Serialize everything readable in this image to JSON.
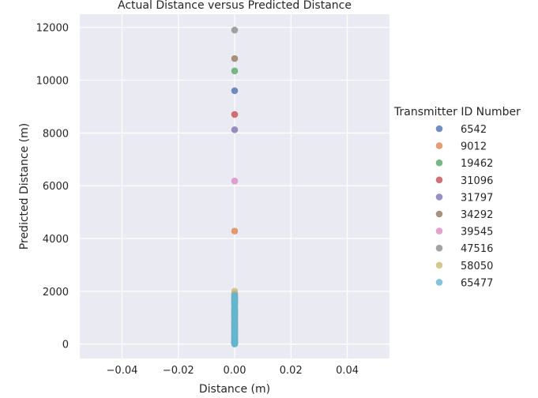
{
  "chart_data": {
    "type": "scatter",
    "title": "Actual Distance versus Predicted Distance",
    "xlabel": "Distance (m)",
    "ylabel": "Predicted Distance (m)",
    "xlim": [
      -0.055,
      0.055
    ],
    "ylim": [
      -550,
      12500
    ],
    "xticks": [
      -0.04,
      -0.02,
      0.0,
      0.02,
      0.04
    ],
    "xtick_labels": [
      "−0.04",
      "−0.02",
      "0.00",
      "0.02",
      "0.04"
    ],
    "yticks": [
      0,
      2000,
      4000,
      6000,
      8000,
      10000,
      12000
    ],
    "ytick_labels": [
      "0",
      "2000",
      "4000",
      "6000",
      "8000",
      "10000",
      "12000"
    ],
    "grid": true,
    "legend": {
      "title": "Transmitter ID Number",
      "placement": "right"
    },
    "series": [
      {
        "name": "6542",
        "color": "#4c72b0",
        "x": [
          0,
          0,
          0,
          0,
          0,
          0,
          0
        ],
        "y": [
          9600,
          1750,
          1200,
          800,
          400,
          150,
          30
        ]
      },
      {
        "name": "9012",
        "color": "#dd8452",
        "x": [
          0,
          0,
          0,
          0,
          0,
          0
        ],
        "y": [
          4280,
          1850,
          1300,
          700,
          300,
          80
        ]
      },
      {
        "name": "19462",
        "color": "#55a868",
        "x": [
          0,
          0,
          0,
          0,
          0,
          0
        ],
        "y": [
          10350,
          1650,
          1100,
          600,
          250,
          50
        ]
      },
      {
        "name": "31096",
        "color": "#c44e52",
        "x": [
          0,
          0,
          0,
          0,
          0,
          0
        ],
        "y": [
          8700,
          1600,
          1000,
          650,
          200,
          40
        ]
      },
      {
        "name": "31797",
        "color": "#8172b3",
        "x": [
          0,
          0,
          0,
          0,
          0,
          0
        ],
        "y": [
          8120,
          1700,
          1150,
          550,
          350,
          60
        ]
      },
      {
        "name": "34292",
        "color": "#937860",
        "x": [
          0,
          0,
          0,
          0,
          0,
          0
        ],
        "y": [
          10820,
          1550,
          1050,
          500,
          180,
          20
        ]
      },
      {
        "name": "39545",
        "color": "#da8bc3",
        "x": [
          0,
          0,
          0,
          0,
          0,
          0
        ],
        "y": [
          6180,
          1800,
          1250,
          750,
          320,
          70
        ]
      },
      {
        "name": "47516",
        "color": "#8c8c8c",
        "x": [
          0,
          0,
          0,
          0,
          0,
          0
        ],
        "y": [
          11900,
          1900,
          1350,
          850,
          420,
          90
        ]
      },
      {
        "name": "58050",
        "color": "#ccb974",
        "x": [
          0,
          0,
          0,
          0,
          0
        ],
        "y": [
          2000,
          1500,
          950,
          450,
          100
        ]
      },
      {
        "name": "65477",
        "color": "#64b5cd",
        "x": [
          0,
          0,
          0,
          0,
          0,
          0,
          0,
          0,
          0,
          0,
          0,
          0,
          0,
          0,
          0,
          0,
          0,
          0,
          0,
          0,
          0,
          0,
          0,
          0,
          0,
          0,
          0,
          0,
          0,
          0,
          0,
          0,
          0,
          0,
          0,
          0,
          0,
          0,
          0,
          0,
          0,
          0,
          0
        ],
        "y": [
          1850,
          1800,
          1750,
          1700,
          1650,
          1600,
          1550,
          1500,
          1450,
          1400,
          1350,
          1300,
          1250,
          1200,
          1150,
          1100,
          1050,
          1000,
          950,
          900,
          850,
          800,
          750,
          700,
          650,
          600,
          550,
          500,
          450,
          400,
          350,
          300,
          250,
          200,
          150,
          120,
          100,
          80,
          60,
          40,
          20,
          10,
          0
        ]
      }
    ]
  }
}
